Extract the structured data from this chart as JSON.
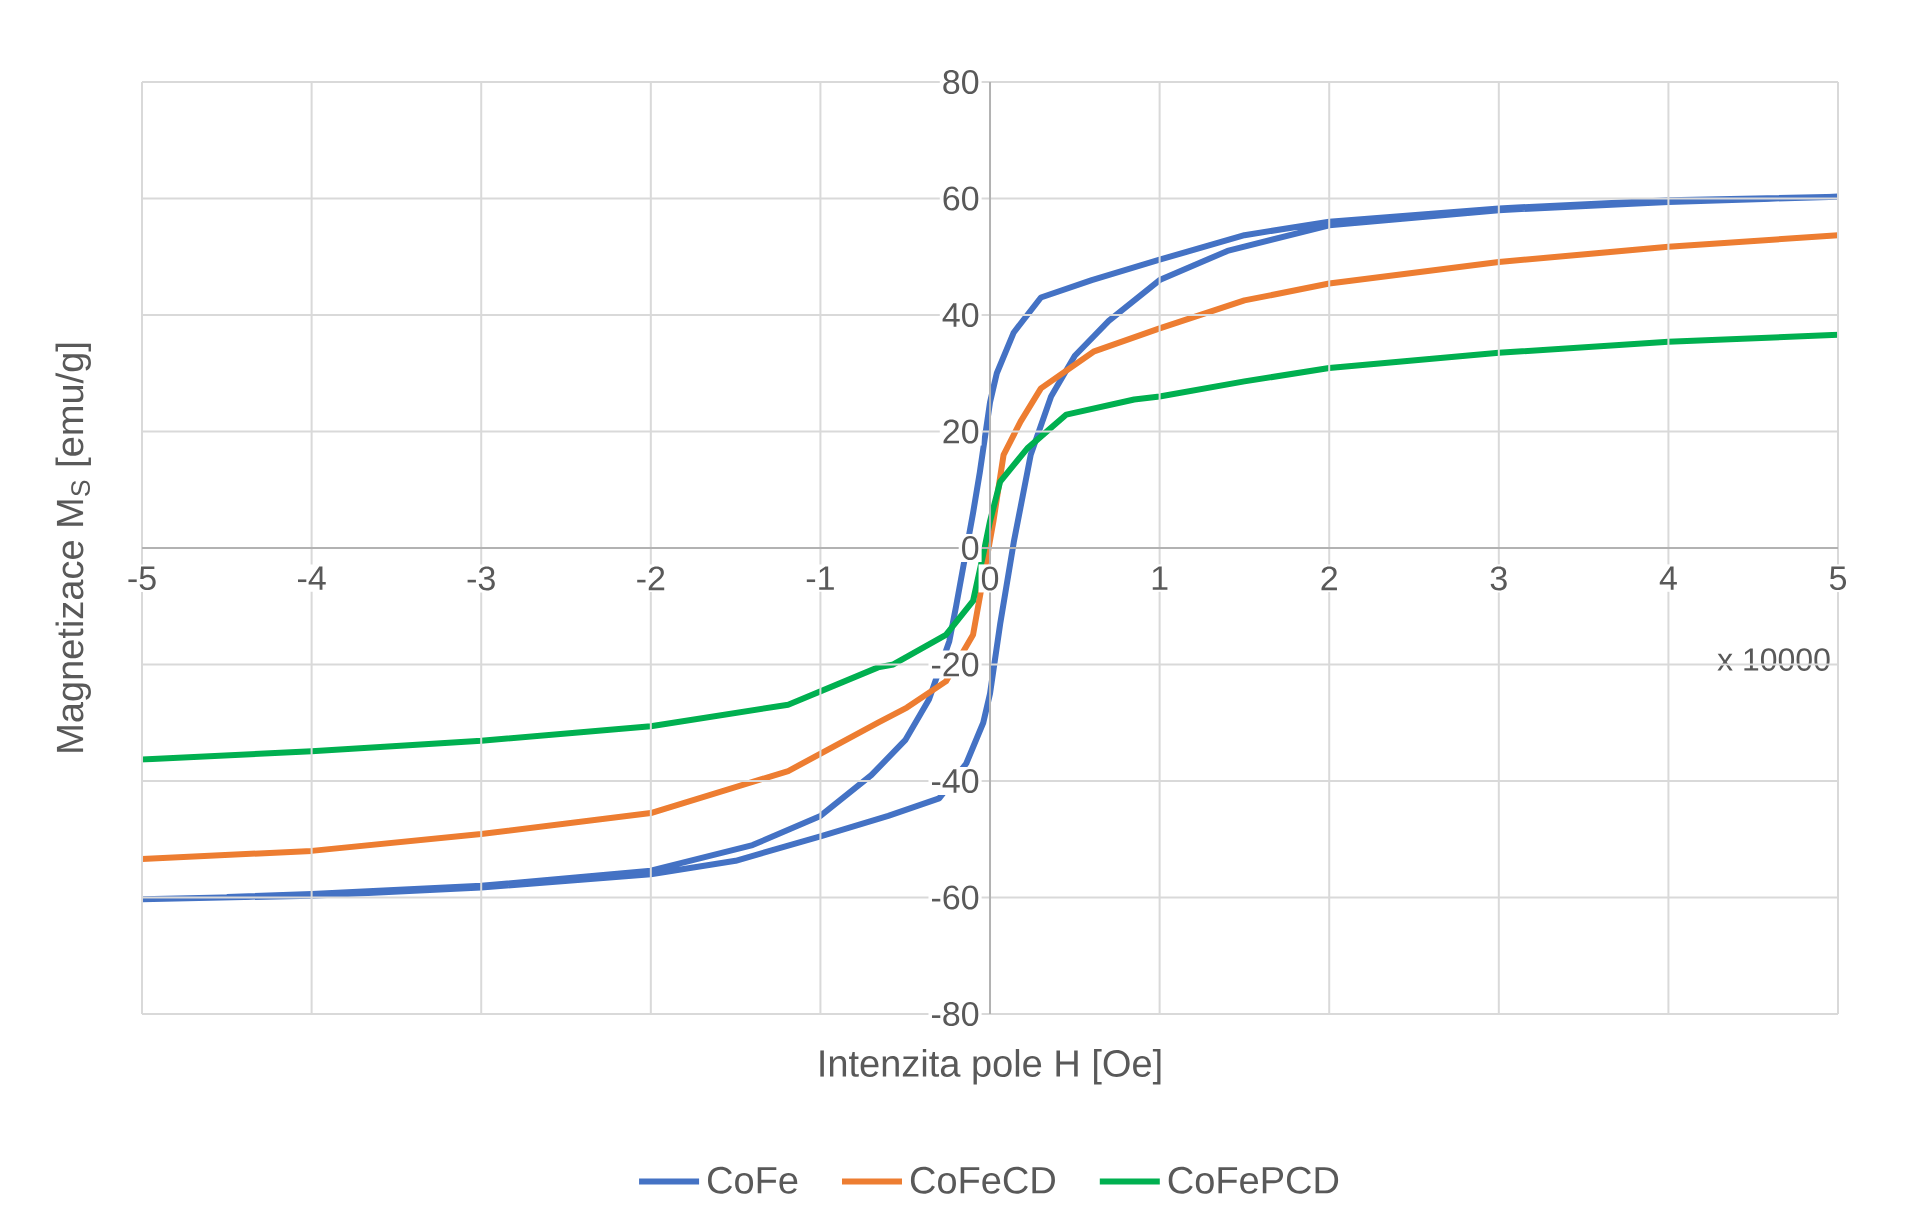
{
  "chart_data": {
    "type": "line",
    "xlabel": "Intenzita pole H [Oe]",
    "ylabel": "Magnetizace M$_{S}$ [emu/g]",
    "annotations": [
      "x 10000"
    ],
    "xlim": [
      -5,
      5
    ],
    "ylim": [
      -80,
      80
    ],
    "xticks": [
      -5,
      -4,
      -3,
      -2,
      -1,
      0,
      1,
      2,
      3,
      4,
      5
    ],
    "yticks": [
      -80,
      -60,
      -40,
      -20,
      0,
      20,
      40,
      60,
      80
    ],
    "grid": true,
    "legend": "bottom",
    "marker": "none",
    "line_style": "solid",
    "series": [
      {
        "name": "CoFe",
        "color": "#4472c4",
        "x": [
          -5,
          -4,
          -3,
          -2,
          -1.5,
          -1,
          -0.6,
          -0.3,
          -0.14,
          -0.04,
          0,
          0.06,
          0.14,
          0.18,
          0.24,
          0.36,
          0.5,
          0.7,
          1,
          1.4,
          2,
          3,
          4,
          5,
          4,
          3,
          2,
          1.5,
          1,
          0.6,
          0.3,
          0.14,
          0.04,
          0,
          -0.06,
          -0.1,
          -0.2,
          -0.24,
          -0.36,
          -0.5,
          -0.7,
          -1,
          -1.4,
          -2,
          -3,
          -4,
          -4.5
        ],
        "values": [
          -60.3,
          -59.7,
          -58.3,
          -56,
          -53.7,
          -49.5,
          -46,
          -43,
          -37,
          -30,
          -25,
          -13,
          1,
          7,
          16,
          26,
          33,
          39,
          46,
          51,
          55.4,
          58,
          59.4,
          60.3,
          59.7,
          58.3,
          56,
          53.7,
          49.5,
          46,
          43,
          37,
          30,
          25,
          13,
          6,
          -10,
          -16,
          -26,
          -33,
          -39,
          -46,
          -51,
          -55.4,
          -58,
          -59.4,
          -59.9
        ]
      },
      {
        "name": "CoFeCD",
        "color": "#ed7d31",
        "x": [
          -5,
          -4,
          -3,
          -2,
          -1.19,
          -0.66,
          -0.49,
          -0.26,
          -0.1,
          0.02,
          0.08,
          0.18,
          0.3,
          0.61,
          1,
          1.5,
          2,
          3,
          4,
          5
        ],
        "values": [
          -53.4,
          -52,
          -49.1,
          -45.5,
          -38.3,
          -30,
          -27.4,
          -22.9,
          -14.9,
          4.6,
          16,
          21.7,
          27.4,
          33.7,
          37.7,
          42.5,
          45.4,
          49.1,
          51.7,
          53.7
        ]
      },
      {
        "name": "CoFePCD",
        "color": "#00b050",
        "x": [
          -5,
          -4,
          -3,
          -2,
          -1.19,
          -0.66,
          -0.57,
          -0.26,
          -0.1,
          -0.04,
          0,
          0.06,
          0.22,
          0.45,
          0.85,
          1,
          1.5,
          2,
          3,
          4,
          5
        ],
        "values": [
          -36.3,
          -34.9,
          -33.1,
          -30.6,
          -26.9,
          -20.5,
          -20,
          -14.9,
          -9.1,
          -1.1,
          4.6,
          11.4,
          17.1,
          22.9,
          25.5,
          26,
          28.6,
          30.9,
          33.5,
          35.4,
          36.6
        ]
      }
    ]
  }
}
